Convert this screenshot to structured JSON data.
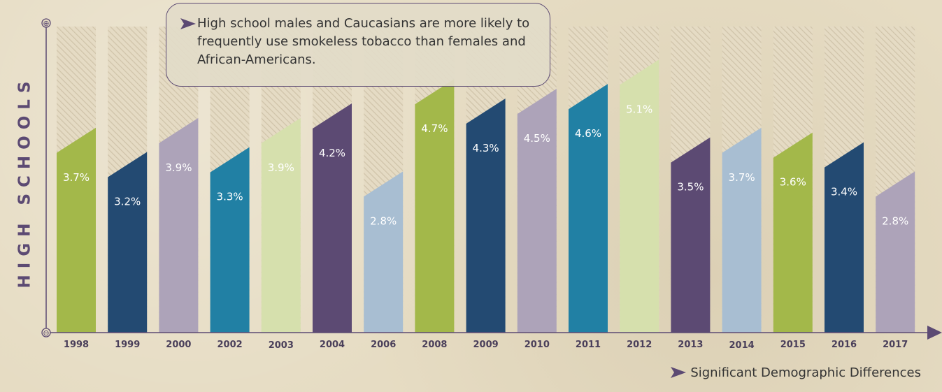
{
  "chart_data": {
    "type": "bar",
    "ylabel": "HIGH SCHOOLS",
    "axis_markers": {
      "top": "⊕",
      "bottom": "⊖"
    },
    "categories": [
      "1998",
      "1999",
      "2000",
      "2002",
      "2003",
      "2004",
      "2006",
      "2008",
      "2009",
      "2010",
      "2011",
      "2012",
      "2013",
      "2014",
      "2015",
      "2016",
      "2017"
    ],
    "values": [
      3.7,
      3.2,
      3.9,
      3.3,
      3.9,
      4.2,
      2.8,
      4.7,
      4.3,
      4.5,
      4.6,
      5.1,
      3.5,
      3.7,
      3.6,
      3.4,
      2.8
    ],
    "value_labels": [
      "3.7%",
      "3.2%",
      "3.9%",
      "3.3%",
      "3.9%",
      "4.2%",
      "2.8%",
      "4.7%",
      "4.3%",
      "4.5%",
      "4.6%",
      "5.1%",
      "3.5%",
      "3.7%",
      "3.6%",
      "3.4%",
      "2.8%"
    ],
    "colors": [
      "#a3b84a",
      "#234a72",
      "#ada3b9",
      "#2180a4",
      "#d6e0ad",
      "#5c4a73",
      "#a8bed2",
      "#a3b84a",
      "#234a72",
      "#ada3b9",
      "#2180a4",
      "#d6e0ad",
      "#5c4a73",
      "#a8bed2",
      "#a3b84a",
      "#234a72",
      "#ada3b9"
    ],
    "label_colors": [
      "#ffffff",
      "#ffffff",
      "#ffffff",
      "#ffffff",
      "#ffffff",
      "#ffffff",
      "#ffffff",
      "#ffffff",
      "#ffffff",
      "#ffffff",
      "#ffffff",
      "#ffffff",
      "#ffffff",
      "#ffffff",
      "#ffffff",
      "#ffffff",
      "#ffffff"
    ],
    "ylim": [
      0,
      6.3
    ],
    "annotation": "High school males and Caucasians are more likely to frequently use smokeless tobacco than females and African-Americans.",
    "legend": "Significant Demographic Differences",
    "marked_years": [
      "2003",
      "2014"
    ]
  },
  "colors": {
    "background": "#e6dcc3",
    "accent": "#5c4a73",
    "hatch_fill": "#e5dbc4",
    "hatch_line": "#cfc3a9"
  }
}
